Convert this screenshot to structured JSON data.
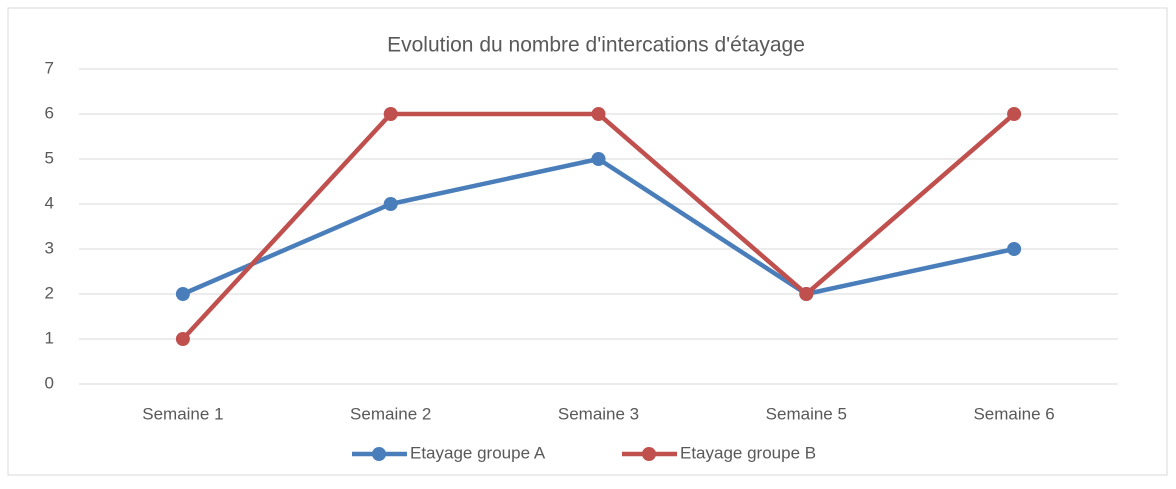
{
  "chart_data": {
    "type": "line",
    "title": "Evolution du nombre d'intercations d'étayage",
    "categories": [
      "Semaine 1",
      "Semaine 2",
      "Semaine 3",
      "Semaine 5",
      "Semaine 6"
    ],
    "series": [
      {
        "name": "Etayage groupe A",
        "color": "#4a7ebb",
        "values": [
          2,
          4,
          5,
          2,
          3
        ]
      },
      {
        "name": "Etayage groupe B",
        "color": "#c0504d",
        "values": [
          1,
          6,
          6,
          2,
          6
        ]
      }
    ],
    "ylim": [
      0,
      7
    ],
    "yticks": [
      0,
      1,
      2,
      3,
      4,
      5,
      6,
      7
    ],
    "grid": true,
    "legend": "bottom"
  }
}
